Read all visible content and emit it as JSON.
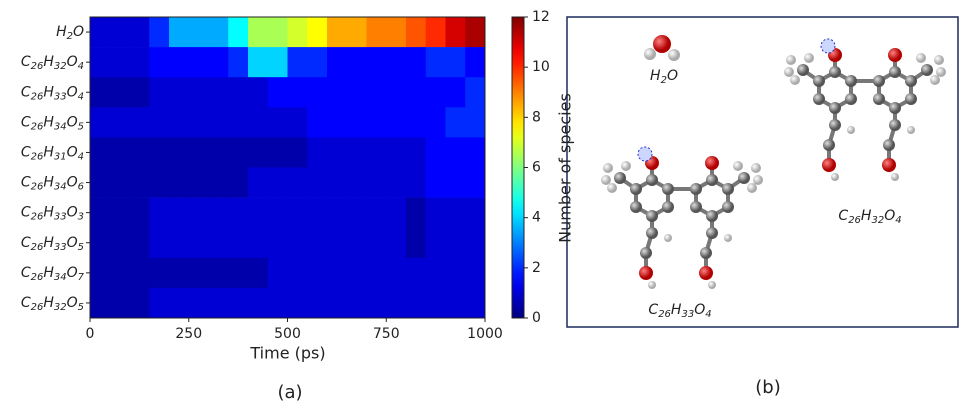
{
  "chart_data": {
    "type": "heatmap",
    "categories": [
      "H2O",
      "C26H32O4",
      "C26H33O4",
      "C26H34O5",
      "C26H31O4",
      "C26H34O6",
      "C26H33O3",
      "C26H33O5",
      "C26H34O7",
      "C26H32O5"
    ],
    "bins": [
      0,
      50,
      100,
      150,
      200,
      250,
      300,
      350,
      400,
      450,
      500,
      550,
      600,
      650,
      700,
      750,
      800,
      850,
      900,
      950,
      1000
    ],
    "values": [
      [
        1,
        1,
        1,
        2,
        3.5,
        3.5,
        3.5,
        4.5,
        6.5,
        6.5,
        7,
        7.5,
        8.5,
        8.5,
        9,
        9,
        9.5,
        10,
        11,
        11.5
      ],
      [
        1,
        1,
        1,
        1.5,
        1.5,
        1.5,
        1.5,
        2,
        4,
        4,
        2,
        2,
        1.5,
        1.5,
        1.5,
        1.5,
        1.5,
        2,
        2,
        1.5
      ],
      [
        0.5,
        0.5,
        0.5,
        1,
        1,
        1,
        1,
        1,
        1,
        1.5,
        1.5,
        1.5,
        1.5,
        1.5,
        1.5,
        1.5,
        1.5,
        1.5,
        1.5,
        2
      ],
      [
        1,
        1,
        1,
        1,
        1,
        1,
        1,
        1,
        1,
        1,
        1,
        1.5,
        1.5,
        1.5,
        1.5,
        1.5,
        1.5,
        1.5,
        2,
        2
      ],
      [
        0.5,
        0.5,
        0.5,
        0.5,
        0.5,
        0.5,
        0.5,
        0.5,
        0.5,
        0.5,
        0.5,
        1,
        1,
        1,
        1,
        1,
        1,
        1.5,
        1.5,
        1.5
      ],
      [
        0.5,
        0.5,
        0.5,
        0.5,
        0.5,
        0.5,
        0.5,
        0.5,
        1,
        1,
        1,
        1,
        1,
        1,
        1,
        1,
        1,
        1.5,
        1.5,
        1.5
      ],
      [
        0.5,
        0.5,
        0.5,
        1,
        1,
        1,
        1,
        1,
        1,
        1,
        1,
        1,
        1,
        1,
        1,
        1,
        0.5,
        1,
        1,
        1
      ],
      [
        0.5,
        0.5,
        0.5,
        1,
        1,
        1,
        1,
        1,
        1,
        1,
        1,
        1,
        1,
        1,
        1,
        1,
        0.5,
        1,
        1,
        1
      ],
      [
        0.5,
        0.5,
        0.5,
        0.5,
        0.5,
        0.5,
        0.5,
        0.5,
        0.5,
        1,
        1,
        1,
        1,
        1,
        1,
        1,
        1,
        1,
        1,
        1
      ],
      [
        0.5,
        0.5,
        0.5,
        1,
        1,
        1,
        1,
        1,
        1,
        1,
        1,
        1,
        1,
        1,
        1,
        1,
        1,
        1,
        1,
        1
      ]
    ],
    "xlim": [
      0,
      1000
    ],
    "xticks": [
      0,
      250,
      500,
      750,
      1000
    ],
    "xlabel": "Time (ps)",
    "clim": [
      0,
      12
    ],
    "cticks": [
      0,
      2,
      4,
      6,
      8,
      10,
      12
    ],
    "clabel": "Number of species",
    "colormap": "jet",
    "caption": "(a)"
  },
  "diagram": {
    "caption": "(b)",
    "labels": [
      "H2O",
      "C26H32O4",
      "C26H33O4"
    ]
  }
}
